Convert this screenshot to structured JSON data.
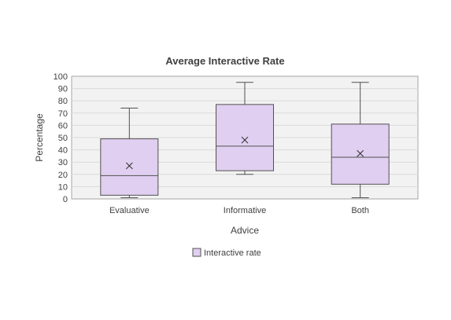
{
  "chart_data": {
    "type": "box",
    "title": "Average Interactive Rate",
    "xlabel": "Advice",
    "ylabel": "Percentage",
    "ylim": [
      0,
      100
    ],
    "yticks": [
      0,
      10,
      20,
      30,
      40,
      50,
      60,
      70,
      80,
      90,
      100
    ],
    "grid": true,
    "legend_placement": "bottom",
    "series": [
      {
        "name": "Interactive rate",
        "color": "#e0cff0",
        "edge_color": "#505050",
        "boxes": [
          {
            "category": "Evaluative",
            "min": 1,
            "q1": 3,
            "median": 19,
            "q3": 49,
            "max": 74,
            "mean": 27
          },
          {
            "category": "Informative",
            "min": 20,
            "q1": 23,
            "median": 43,
            "q3": 77,
            "max": 95,
            "mean": 48
          },
          {
            "category": "Both",
            "min": 1,
            "q1": 12,
            "median": 34,
            "q3": 61,
            "max": 95,
            "mean": 37
          }
        ]
      }
    ],
    "categories": [
      "Evaluative",
      "Informative",
      "Both"
    ],
    "plot_background": "#f2f2f2",
    "grid_color": "#d9d9d9"
  }
}
